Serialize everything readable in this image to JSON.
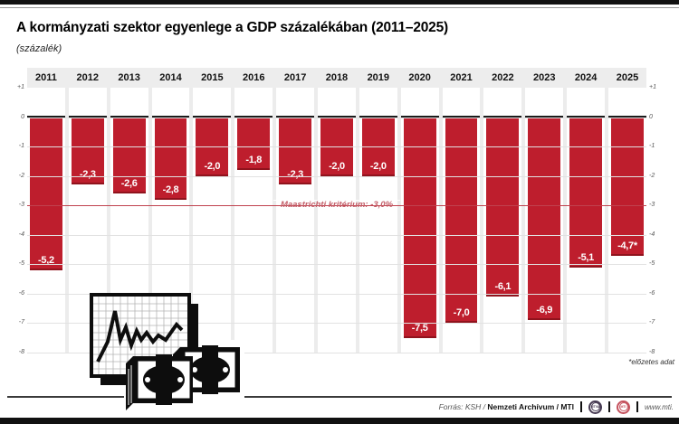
{
  "header": {
    "title": "A kormányzati szektor egyenlege a GDP százalékában (2011–2025)",
    "subtitle": "(százalék)"
  },
  "chart_data": {
    "type": "bar",
    "title": "A kormányzati szektor egyenlege a GDP százalékában (2011–2025)",
    "ylabel": "(százalék)",
    "categories": [
      "2011",
      "2012",
      "2013",
      "2014",
      "2015",
      "2016",
      "2017",
      "2018",
      "2019",
      "2020",
      "2021",
      "2022",
      "2023",
      "2024",
      "2025"
    ],
    "values": [
      -5.2,
      -2.3,
      -2.6,
      -2.8,
      -2.0,
      -1.8,
      -2.3,
      -2.0,
      -2.0,
      -7.5,
      -7.0,
      -6.1,
      -6.9,
      -5.1,
      -4.7
    ],
    "bar_labels": [
      "-5,2",
      "-2,3",
      "-2,6",
      "-2,8",
      "-2,0",
      "-1,8",
      "-2,3",
      "-2,0",
      "-2,0",
      "-7,5",
      "-7,0",
      "-6,1",
      "-6,9",
      "-5,1",
      "-4,7*"
    ],
    "ylim": [
      -8,
      1
    ],
    "ytick_labels": [
      "+1",
      "0",
      "-1",
      "-2",
      "-3",
      "-4",
      "-5",
      "-6",
      "-7",
      "-8"
    ],
    "grid": true,
    "legend": "none",
    "bar_color": "#be1e2d",
    "reference_line": {
      "value": -3.0,
      "label": "Maastrichti kritérium: -3,0%",
      "color": "#c0424e"
    }
  },
  "note": "*előzetes adat",
  "footer": {
    "source_prefix": "Forrás: KSH /",
    "source_bold": "Nemzeti Archívum / MTI",
    "logos": [
      "MTVA",
      "MTI"
    ],
    "url": "www.mti."
  }
}
